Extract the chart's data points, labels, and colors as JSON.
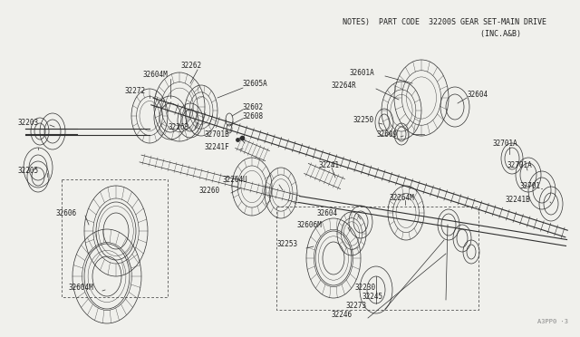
{
  "bg_color": "#f0f0ec",
  "line_color": "#303030",
  "text_color": "#202020",
  "title_line1": "NOTES)  PART CODE  32200S GEAR SET-MAIN DRIVE",
  "title_line2": "                         (INC.A&B)",
  "watermark": "A3PP0 ·3",
  "figsize": [
    6.4,
    3.72
  ],
  "dpi": 100
}
